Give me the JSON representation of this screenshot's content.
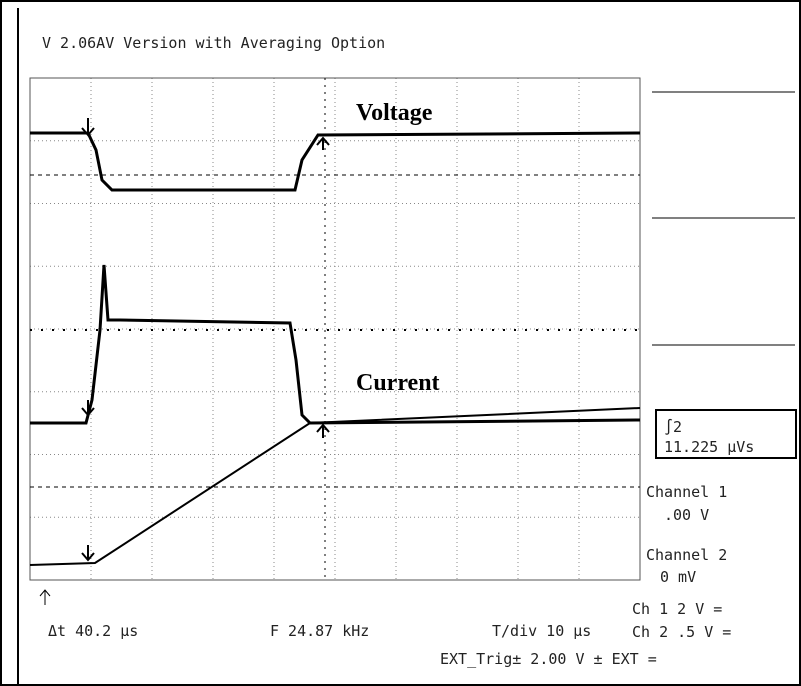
{
  "header": {
    "title": "V 2.06AV  Version with Averaging Option"
  },
  "annotations": {
    "voltage": "Voltage",
    "current": "Current"
  },
  "side_panel": {
    "integral_symbol": "∫2",
    "integral_value": "11.225 μVs",
    "channel1_label": "Channel 1",
    "channel1_offset": ".00 V",
    "channel2_label": "Channel 2",
    "channel2_offset": "0 mV"
  },
  "status_bar": {
    "delta_t": "Δt 40.2 μs",
    "frequency": "F 24.87 kHz",
    "time_div": "T/div 10 μs",
    "ch1_scale": "Ch 1  2  V =",
    "ch2_scale": "Ch 2  .5  V =",
    "trigger": "EXT_Trig± 2.00 V  ± EXT  ="
  }
}
